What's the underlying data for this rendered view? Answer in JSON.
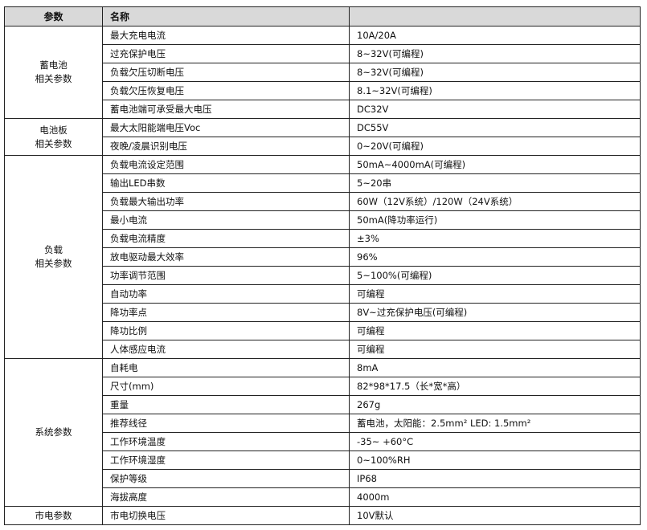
{
  "header": {
    "col1": "参数",
    "col2": "名称",
    "col3": ""
  },
  "groups": [
    {
      "label": [
        "蓄电池",
        "相关参数"
      ],
      "rows": [
        [
          "最大充电电流",
          "10A/20A"
        ],
        [
          "过充保护电压",
          "8~32V(可编程)"
        ],
        [
          "负载欠压切断电压",
          "8~32V(可编程)"
        ],
        [
          "负载欠压恢复电压",
          "8.1~32V(可编程)"
        ],
        [
          "蓄电池端可承受最大电压",
          "DC32V"
        ]
      ]
    },
    {
      "label": [
        "电池板",
        "相关参数"
      ],
      "rows": [
        [
          "最大太阳能端电压Voc",
          "DC55V"
        ],
        [
          "夜晚/凌晨识别电压",
          "0~20V(可编程)"
        ]
      ]
    },
    {
      "label": [
        "负载",
        "相关参数"
      ],
      "rows": [
        [
          "负载电流设定范围",
          "50mA~4000mA(可编程)"
        ],
        [
          "输出LED串数",
          "5~20串"
        ],
        [
          "负载最大输出功率",
          "60W（12V系统）/120W（24V系统）"
        ],
        [
          "最小电流",
          "50mA(降功率运行)"
        ],
        [
          "负载电流精度",
          "±3%"
        ],
        [
          "放电驱动最大效率",
          "96%"
        ],
        [
          "功率调节范围",
          "5~100%(可编程)"
        ],
        [
          "自动功率",
          "可编程"
        ],
        [
          "降功率点",
          "8V~过充保护电压(可编程)"
        ],
        [
          "降功比例",
          "可编程"
        ],
        [
          "人体感应电流",
          "可编程"
        ]
      ]
    },
    {
      "label": [
        "系统参数"
      ],
      "rows": [
        [
          "自耗电",
          "8mA"
        ],
        [
          "尺寸(mm)",
          "82*98*17.5（长*宽*高）"
        ],
        [
          "重量",
          "267g"
        ],
        [
          "推荐线径",
          "蓄电池，太阳能：2.5mm² LED: 1.5mm²"
        ],
        [
          "工作环境温度",
          "-35~ +60°C"
        ],
        [
          "工作环境湿度",
          "0~100%RH"
        ],
        [
          "保护等级",
          "IP68"
        ],
        [
          "海拔高度",
          "4000m"
        ]
      ]
    },
    {
      "label": [
        "市电参数"
      ],
      "rows": [
        [
          "市电切换电压",
          "10V默认"
        ]
      ]
    }
  ]
}
